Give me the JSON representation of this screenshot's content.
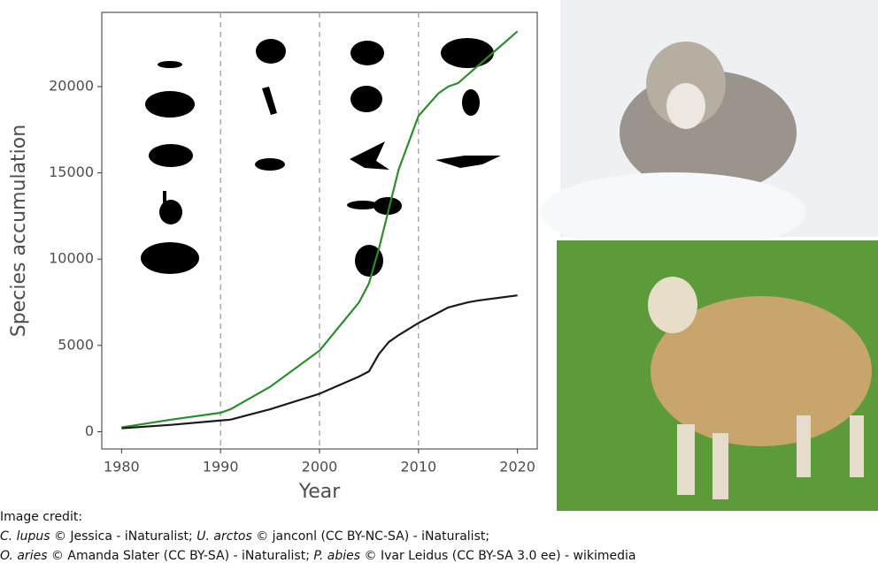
{
  "chart_data": {
    "type": "line",
    "x_label": "Year",
    "y_label": "Species accumulation",
    "x": [
      1980,
      1985,
      1990,
      1991,
      1995,
      2000,
      2004,
      2005,
      2006,
      2007,
      2008,
      2010,
      2012,
      2013,
      2014,
      2015,
      2016,
      2018,
      2020
    ],
    "series": [
      {
        "color": "#2e8b2e",
        "values": [
          250,
          700,
          1100,
          1300,
          2600,
          4700,
          7500,
          8600,
          10600,
          12900,
          15200,
          18300,
          19600,
          20000,
          20200,
          20700,
          21200,
          22200,
          23200
        ]
      },
      {
        "color": "#1a1a1a",
        "values": [
          200,
          400,
          650,
          700,
          1300,
          2200,
          3200,
          3500,
          4500,
          5200,
          5600,
          6300,
          6900,
          7200,
          7350,
          7500,
          7600,
          7750,
          7900
        ]
      }
    ],
    "xlim": [
      1978,
      2022
    ],
    "ylim": [
      -1000,
      24300
    ],
    "xticks": [
      1980,
      1990,
      2000,
      2010,
      2020
    ],
    "yticks": [
      0,
      5000,
      10000,
      15000,
      20000
    ],
    "decade_lines": [
      1990,
      2000,
      2010
    ]
  },
  "credits": {
    "heading": "Image credit:",
    "lines": [
      [
        {
          "text": "C. lupus",
          "italic": true
        },
        {
          "text": " © Jessica - iNaturalist; ",
          "italic": false
        },
        {
          "text": "U. arctos",
          "italic": true
        },
        {
          "text": " © janconl (CC BY-NC-SA) - iNaturalist;",
          "italic": false
        }
      ],
      [
        {
          "text": "O. aries",
          "italic": true
        },
        {
          "text": " © Amanda Slater (CC BY-SA) - iNaturalist; ",
          "italic": false
        },
        {
          "text": "P. abies",
          "italic": true
        },
        {
          "text": " © Ivar Leidus (CC BY-SA 3.0 ee) - wikimedia",
          "italic": false
        }
      ]
    ]
  }
}
